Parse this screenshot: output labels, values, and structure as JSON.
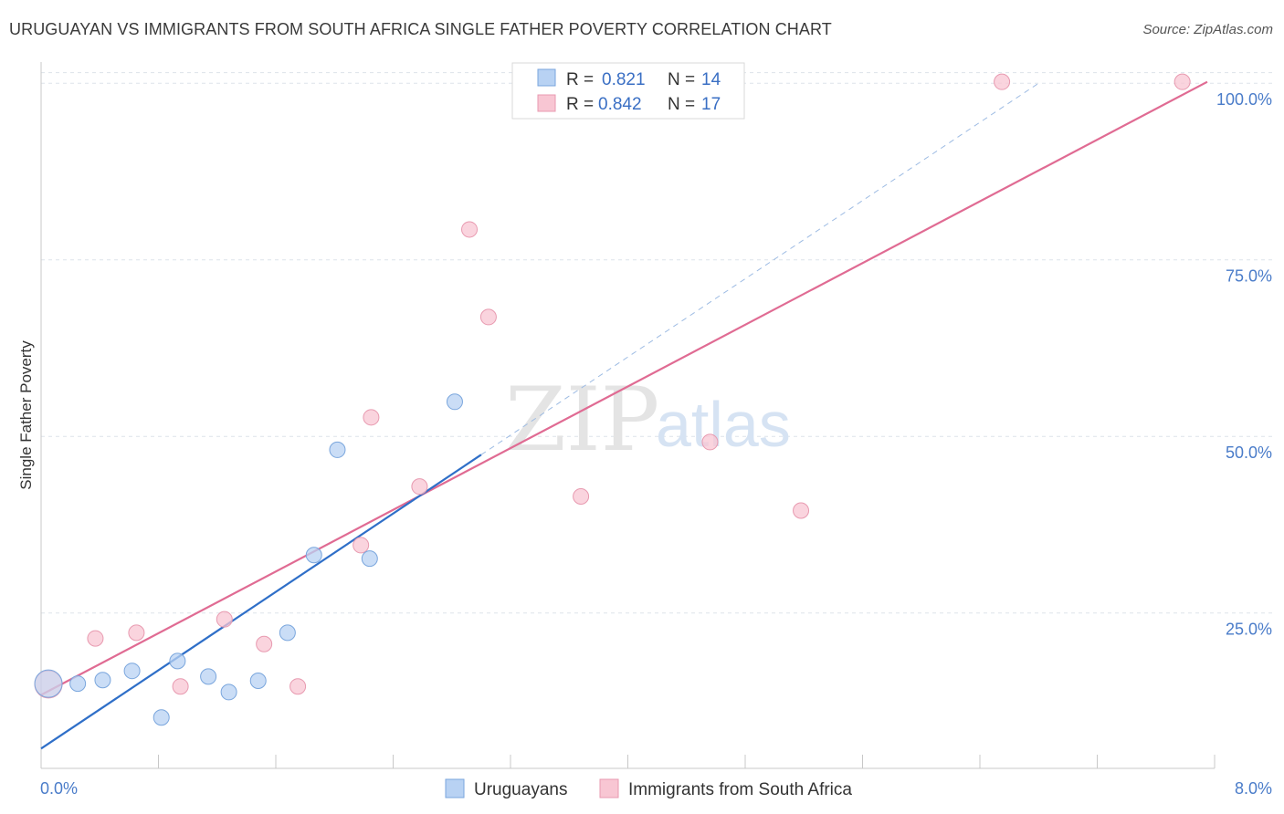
{
  "title": "URUGUAYAN VS IMMIGRANTS FROM SOUTH AFRICA SINGLE FATHER POVERTY CORRELATION CHART",
  "source": "Source: ZipAtlas.com",
  "watermark": {
    "zip": "ZIP",
    "atlas": "atlas"
  },
  "colors": {
    "blue_fill": "#b8d2f3",
    "blue_stroke": "#7aa6dd",
    "blue_line": "#2f6fc8",
    "pink_fill": "#f8c6d3",
    "pink_stroke": "#e89ab0",
    "pink_line": "#e06b93",
    "grid": "#dde3ea",
    "tick_label": "#4a7cc9"
  },
  "legend": {
    "rows": [
      {
        "r_label": "R =",
        "r_value": "0.821",
        "n_label": "N =",
        "n_value": "14"
      },
      {
        "r_label": "R =",
        "r_value": "0.842",
        "n_label": "N =",
        "n_value": "17"
      }
    ]
  },
  "chart_data": {
    "type": "scatter",
    "title": "URUGUAYAN VS IMMIGRANTS FROM SOUTH AFRICA SINGLE FATHER POVERTY CORRELATION CHART",
    "xlabel": "",
    "ylabel": "Single Father Poverty",
    "xlim": [
      0,
      8
    ],
    "ylim": [
      3,
      103
    ],
    "x_tick_labels": [
      "0.0%",
      "8.0%"
    ],
    "y_ticks": [
      25,
      50,
      75,
      100
    ],
    "y_tick_labels": [
      "25.0%",
      "50.0%",
      "75.0%",
      "100.0%"
    ],
    "grid": true,
    "legend_position": "top-center",
    "series": [
      {
        "name": "Uruguayans",
        "r": 0.821,
        "n": 14,
        "points": [
          {
            "x": 0.05,
            "y": 15.0,
            "large": true
          },
          {
            "x": 0.25,
            "y": 15.0
          },
          {
            "x": 0.42,
            "y": 15.5
          },
          {
            "x": 0.62,
            "y": 16.8
          },
          {
            "x": 0.82,
            "y": 10.2
          },
          {
            "x": 0.93,
            "y": 18.2
          },
          {
            "x": 1.14,
            "y": 16.0
          },
          {
            "x": 1.28,
            "y": 13.8
          },
          {
            "x": 1.48,
            "y": 15.4
          },
          {
            "x": 1.68,
            "y": 22.2
          },
          {
            "x": 1.86,
            "y": 33.2
          },
          {
            "x": 2.02,
            "y": 48.1
          },
          {
            "x": 2.24,
            "y": 32.7
          },
          {
            "x": 2.82,
            "y": 54.9
          }
        ],
        "trend": {
          "x0": 0.0,
          "y0": 5.8,
          "x1": 3.0,
          "y1": 47.4,
          "dashed_to_x": 6.8,
          "dashed_to_y": 100.0
        }
      },
      {
        "name": "Immigrants from South Africa",
        "r": 0.842,
        "n": 17,
        "points": [
          {
            "x": 0.05,
            "y": 14.9,
            "large": true
          },
          {
            "x": 0.37,
            "y": 21.4
          },
          {
            "x": 0.65,
            "y": 22.2
          },
          {
            "x": 0.95,
            "y": 14.6
          },
          {
            "x": 1.25,
            "y": 24.1
          },
          {
            "x": 1.52,
            "y": 20.6
          },
          {
            "x": 1.75,
            "y": 14.6
          },
          {
            "x": 2.18,
            "y": 34.6
          },
          {
            "x": 2.25,
            "y": 52.7
          },
          {
            "x": 2.58,
            "y": 42.9
          },
          {
            "x": 2.92,
            "y": 79.3
          },
          {
            "x": 3.05,
            "y": 66.9
          },
          {
            "x": 3.68,
            "y": 41.5
          },
          {
            "x": 4.56,
            "y": 49.2
          },
          {
            "x": 5.18,
            "y": 39.5
          },
          {
            "x": 6.55,
            "y": 100.2
          },
          {
            "x": 7.78,
            "y": 100.2
          }
        ],
        "trend": {
          "x0": 0.0,
          "y0": 13.4,
          "x1": 7.95,
          "y1": 100.2
        }
      }
    ]
  }
}
